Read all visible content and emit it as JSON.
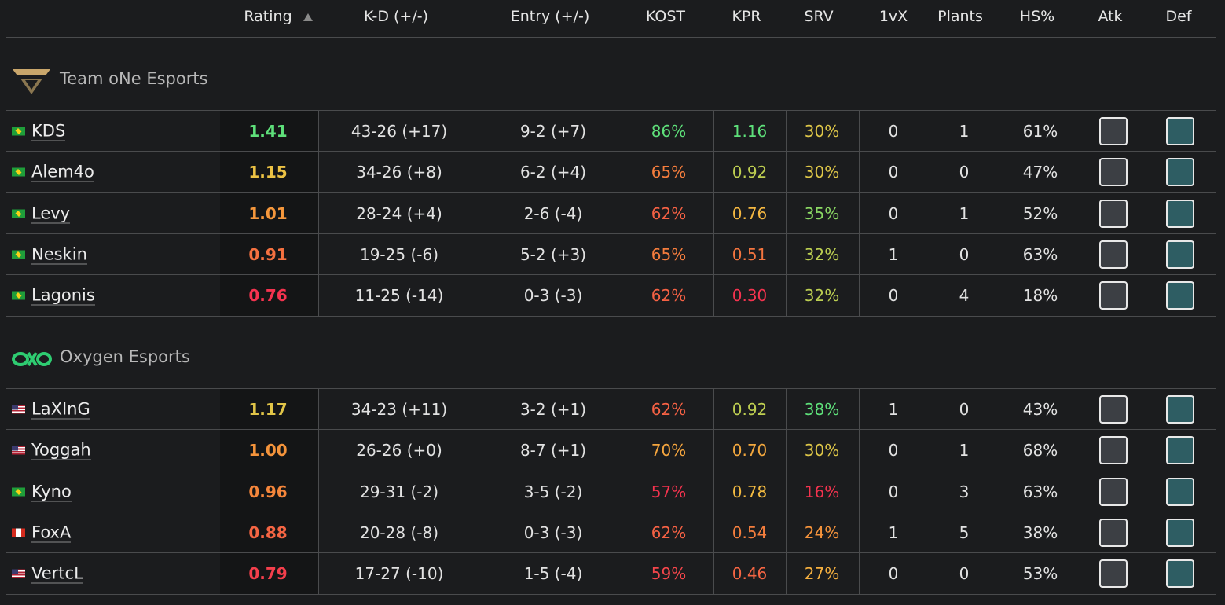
{
  "header": {
    "columns": [
      "Rating",
      "K-D (+/-)",
      "Entry (+/-)",
      "KOST",
      "KPR",
      "SRV",
      "1vX",
      "Plants",
      "HS%",
      "Atk",
      "Def"
    ]
  },
  "teams": [
    {
      "name": "Team oNe Esports",
      "players": [
        {
          "name": "KDS",
          "rating": "1.41",
          "kd": "43-26 (+17)",
          "entry": "9-2 (+7)",
          "kost": "86%",
          "kpr": "1.16",
          "srv": "30%",
          "onevx": "0",
          "plants": "1",
          "hs": "61%"
        },
        {
          "name": "Alem4o",
          "rating": "1.15",
          "kd": "34-26 (+8)",
          "entry": "6-2 (+4)",
          "kost": "65%",
          "kpr": "0.92",
          "srv": "30%",
          "onevx": "0",
          "plants": "0",
          "hs": "47%"
        },
        {
          "name": "Levy",
          "rating": "1.01",
          "kd": "28-24 (+4)",
          "entry": "2-6 (-4)",
          "kost": "62%",
          "kpr": "0.76",
          "srv": "35%",
          "onevx": "0",
          "plants": "1",
          "hs": "52%"
        },
        {
          "name": "Neskin",
          "rating": "0.91",
          "kd": "19-25 (-6)",
          "entry": "5-2 (+3)",
          "kost": "65%",
          "kpr": "0.51",
          "srv": "32%",
          "onevx": "1",
          "plants": "0",
          "hs": "63%"
        },
        {
          "name": "Lagonis",
          "rating": "0.76",
          "kd": "11-25 (-14)",
          "entry": "0-3 (-3)",
          "kost": "62%",
          "kpr": "0.30",
          "srv": "32%",
          "onevx": "0",
          "plants": "4",
          "hs": "18%"
        }
      ]
    },
    {
      "name": "Oxygen Esports",
      "players": [
        {
          "name": "LaXInG",
          "rating": "1.17",
          "kd": "34-23 (+11)",
          "entry": "3-2 (+1)",
          "kost": "62%",
          "kpr": "0.92",
          "srv": "38%",
          "onevx": "1",
          "plants": "0",
          "hs": "43%"
        },
        {
          "name": "Yoggah",
          "rating": "1.00",
          "kd": "26-26 (+0)",
          "entry": "8-7 (+1)",
          "kost": "70%",
          "kpr": "0.70",
          "srv": "30%",
          "onevx": "0",
          "plants": "1",
          "hs": "68%"
        },
        {
          "name": "Kyno",
          "rating": "0.96",
          "kd": "29-31 (-2)",
          "entry": "3-5 (-2)",
          "kost": "57%",
          "kpr": "0.78",
          "srv": "16%",
          "onevx": "0",
          "plants": "3",
          "hs": "63%"
        },
        {
          "name": "FoxA",
          "rating": "0.88",
          "kd": "20-28 (-8)",
          "entry": "0-3 (-3)",
          "kost": "62%",
          "kpr": "0.54",
          "srv": "24%",
          "onevx": "1",
          "plants": "5",
          "hs": "38%"
        },
        {
          "name": "VertcL",
          "rating": "0.79",
          "kd": "17-27 (-10)",
          "entry": "1-5 (-4)",
          "kost": "59%",
          "kpr": "0.46",
          "srv": "27%",
          "onevx": "0",
          "plants": "0",
          "hs": "53%"
        }
      ]
    }
  ]
}
